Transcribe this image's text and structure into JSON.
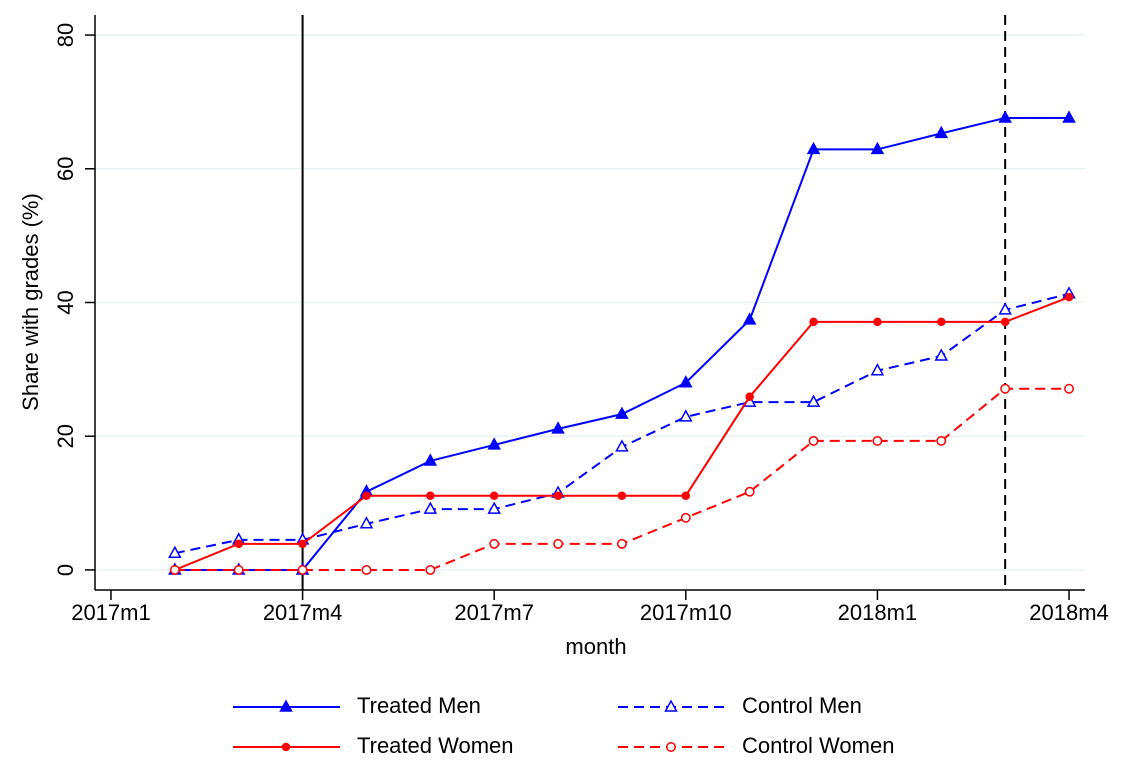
{
  "chart_data": {
    "type": "line",
    "x_label": "month",
    "y_label": "Share with grades (%)",
    "x": [
      685,
      686,
      687,
      688,
      689,
      690,
      691,
      692,
      693,
      694,
      695,
      696,
      697,
      698,
      699
    ],
    "xlim": [
      683.75,
      699.25
    ],
    "xticks": [
      {
        "value": 684,
        "label": "2017m1"
      },
      {
        "value": 687,
        "label": "2017m4"
      },
      {
        "value": 690,
        "label": "2017m7"
      },
      {
        "value": 693,
        "label": "2017m10"
      },
      {
        "value": 696,
        "label": "2018m1"
      },
      {
        "value": 699,
        "label": "2018m4"
      }
    ],
    "ylim": [
      -3,
      83
    ],
    "yticks": [
      0,
      20,
      40,
      60,
      80
    ],
    "grid": true,
    "legend_position": "bottom",
    "vlines": [
      {
        "value": 687,
        "dashed": false
      },
      {
        "value": 698,
        "dashed": true
      }
    ],
    "series": [
      {
        "name": "Treated Men",
        "color": "#0000ff",
        "dashed": false,
        "marker": "triangle",
        "filled": true,
        "values": [
          0,
          0,
          0,
          11.7,
          16.3,
          18.7,
          21.1,
          23.3,
          28.0,
          37.4,
          62.9,
          62.9,
          65.3,
          67.6,
          67.6
        ]
      },
      {
        "name": "Control Men",
        "color": "#0000ff",
        "dashed": true,
        "marker": "triangle",
        "filled": false,
        "values": [
          2.5,
          4.5,
          4.5,
          6.9,
          9.1,
          9.1,
          11.5,
          18.4,
          22.9,
          25.1,
          25.1,
          29.8,
          32.0,
          38.9,
          41.3
        ]
      },
      {
        "name": "Treated Women",
        "color": "#ff0000",
        "dashed": false,
        "marker": "circle",
        "filled": true,
        "values": [
          0,
          3.9,
          3.9,
          11.1,
          11.1,
          11.1,
          11.1,
          11.1,
          11.1,
          25.9,
          37.1,
          37.1,
          37.1,
          37.1,
          40.8
        ]
      },
      {
        "name": "Control Women",
        "color": "#ff0000",
        "dashed": true,
        "marker": "circle",
        "filled": false,
        "values": [
          0,
          0,
          0,
          0,
          0,
          3.9,
          3.9,
          3.9,
          7.8,
          11.7,
          19.3,
          19.3,
          19.3,
          27.1,
          27.1
        ]
      }
    ]
  }
}
